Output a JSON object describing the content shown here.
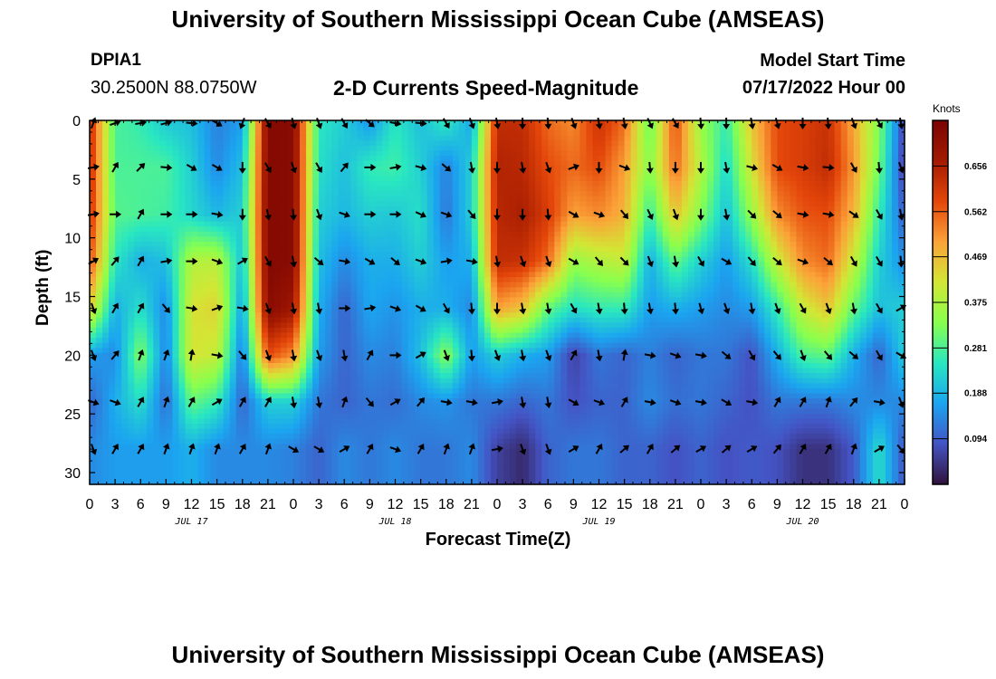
{
  "header": {
    "title": "University of Southern Mississippi Ocean Cube (AMSEAS)",
    "station": "DPIA1",
    "coords": "30.2500N  88.0750W",
    "plot_title": "2-D Currents Speed-Magnitude",
    "model_start_label": "Model Start Time",
    "model_start_value": "07/17/2022 Hour 00"
  },
  "footer": {
    "title": "University of Southern Mississippi Ocean Cube (AMSEAS)"
  },
  "chart_data": {
    "type": "heatmap",
    "title": "2-D Currents Speed-Magnitude",
    "xlabel": "Forecast Time(Z)",
    "ylabel": "Depth (ft)",
    "x_tick_labels": [
      "0",
      "3",
      "6",
      "9",
      "12",
      "15",
      "18",
      "21",
      "0",
      "3",
      "6",
      "9",
      "12",
      "15",
      "18",
      "21",
      "0",
      "3",
      "6",
      "9",
      "12",
      "15",
      "18",
      "21",
      "0",
      "3",
      "6",
      "9",
      "12",
      "15",
      "18",
      "21",
      "0"
    ],
    "date_labels": [
      {
        "label": "JUL 17",
        "hour": 12
      },
      {
        "label": "JUL 18",
        "hour": 36
      },
      {
        "label": "JUL 19",
        "hour": 60
      },
      {
        "label": "JUL 20",
        "hour": 84
      }
    ],
    "xlim_hours": [
      0,
      96
    ],
    "y_ticks": [
      0,
      5,
      10,
      15,
      20,
      25,
      30
    ],
    "ylim_ft": [
      0,
      31
    ],
    "colorbar": {
      "title": "Knots",
      "ticks": [
        0.094,
        0.188,
        0.281,
        0.375,
        0.469,
        0.562,
        0.656
      ],
      "range": [
        0,
        0.75
      ],
      "colors": [
        "#30123b",
        "#4454c4",
        "#1ba4f0",
        "#29e7c1",
        "#88ff4e",
        "#d3e635",
        "#fba238",
        "#e4460a",
        "#a41a01",
        "#7a0403"
      ]
    },
    "depth_levels_ft": [
      0,
      4,
      8,
      12,
      16,
      20,
      24,
      28
    ],
    "column_hours": [
      0,
      3,
      6,
      9,
      12,
      15,
      18,
      21,
      24,
      27,
      30,
      33,
      36,
      39,
      42,
      45,
      48,
      51,
      54,
      57,
      60,
      63,
      66,
      69,
      72,
      75,
      78,
      81,
      84,
      87,
      90,
      93,
      96
    ],
    "speed_knots": [
      [
        0.63,
        0.28,
        0.26,
        0.21,
        0.2,
        0.13,
        0.16,
        0.73,
        0.72,
        0.25,
        0.22,
        0.15,
        0.25,
        0.2,
        0.26,
        0.17,
        0.63,
        0.63,
        0.55,
        0.52,
        0.62,
        0.55,
        0.3,
        0.58,
        0.35,
        0.26,
        0.46,
        0.58,
        0.6,
        0.62,
        0.49,
        0.33,
        0.06
      ],
      [
        0.63,
        0.28,
        0.28,
        0.28,
        0.22,
        0.14,
        0.2,
        0.73,
        0.72,
        0.24,
        0.2,
        0.26,
        0.27,
        0.22,
        0.13,
        0.22,
        0.65,
        0.64,
        0.58,
        0.55,
        0.58,
        0.5,
        0.33,
        0.55,
        0.38,
        0.23,
        0.42,
        0.58,
        0.6,
        0.63,
        0.51,
        0.31,
        0.05
      ],
      [
        0.62,
        0.29,
        0.28,
        0.27,
        0.23,
        0.19,
        0.22,
        0.73,
        0.72,
        0.22,
        0.19,
        0.22,
        0.21,
        0.24,
        0.12,
        0.22,
        0.64,
        0.66,
        0.6,
        0.5,
        0.52,
        0.48,
        0.26,
        0.46,
        0.33,
        0.2,
        0.35,
        0.52,
        0.57,
        0.58,
        0.48,
        0.26,
        0.09
      ],
      [
        0.58,
        0.25,
        0.18,
        0.2,
        0.38,
        0.39,
        0.2,
        0.73,
        0.72,
        0.2,
        0.14,
        0.18,
        0.18,
        0.22,
        0.16,
        0.18,
        0.63,
        0.62,
        0.55,
        0.35,
        0.38,
        0.4,
        0.18,
        0.3,
        0.22,
        0.16,
        0.24,
        0.4,
        0.52,
        0.55,
        0.4,
        0.22,
        0.14
      ],
      [
        0.45,
        0.18,
        0.24,
        0.14,
        0.42,
        0.44,
        0.16,
        0.72,
        0.68,
        0.18,
        0.1,
        0.17,
        0.15,
        0.18,
        0.18,
        0.14,
        0.5,
        0.46,
        0.3,
        0.24,
        0.26,
        0.26,
        0.16,
        0.18,
        0.16,
        0.14,
        0.16,
        0.26,
        0.4,
        0.46,
        0.3,
        0.2,
        0.22
      ],
      [
        0.16,
        0.14,
        0.33,
        0.13,
        0.42,
        0.4,
        0.12,
        0.58,
        0.52,
        0.16,
        0.1,
        0.14,
        0.13,
        0.2,
        0.34,
        0.16,
        0.22,
        0.18,
        0.16,
        0.06,
        0.12,
        0.1,
        0.13,
        0.1,
        0.12,
        0.12,
        0.08,
        0.18,
        0.28,
        0.3,
        0.18,
        0.1,
        0.22
      ],
      [
        0.1,
        0.18,
        0.24,
        0.11,
        0.3,
        0.26,
        0.1,
        0.22,
        0.22,
        0.12,
        0.1,
        0.12,
        0.11,
        0.14,
        0.15,
        0.12,
        0.12,
        0.1,
        0.12,
        0.08,
        0.1,
        0.1,
        0.14,
        0.11,
        0.12,
        0.1,
        0.08,
        0.12,
        0.12,
        0.12,
        0.14,
        0.14,
        0.14
      ],
      [
        0.14,
        0.16,
        0.16,
        0.16,
        0.18,
        0.14,
        0.14,
        0.14,
        0.13,
        0.1,
        0.14,
        0.12,
        0.14,
        0.12,
        0.12,
        0.14,
        0.06,
        0.03,
        0.1,
        0.12,
        0.12,
        0.1,
        0.1,
        0.08,
        0.1,
        0.08,
        0.09,
        0.08,
        0.04,
        0.04,
        0.09,
        0.24,
        0.08
      ]
    ],
    "direction_deg": [
      [
        20,
        70,
        80,
        75,
        95,
        120,
        200,
        150,
        165,
        160,
        150,
        130,
        100,
        95,
        150,
        160,
        170,
        180,
        175,
        160,
        170,
        170,
        155,
        150,
        175,
        180,
        170,
        165,
        180,
        175,
        160,
        150,
        170
      ],
      [
        80,
        30,
        45,
        95,
        120,
        120,
        180,
        150,
        160,
        150,
        40,
        90,
        80,
        105,
        130,
        170,
        180,
        170,
        160,
        70,
        180,
        110,
        175,
        180,
        180,
        170,
        105,
        120,
        100,
        95,
        150,
        175,
        160
      ],
      [
        80,
        90,
        30,
        90,
        90,
        100,
        180,
        170,
        175,
        160,
        110,
        90,
        90,
        115,
        110,
        140,
        180,
        180,
        175,
        120,
        110,
        140,
        155,
        160,
        180,
        170,
        135,
        130,
        100,
        100,
        125,
        150,
        170
      ],
      [
        60,
        40,
        30,
        80,
        90,
        110,
        60,
        150,
        170,
        130,
        100,
        120,
        130,
        110,
        80,
        100,
        170,
        160,
        160,
        120,
        140,
        135,
        160,
        170,
        150,
        120,
        140,
        130,
        110,
        130,
        150,
        150,
        175
      ],
      [
        160,
        30,
        30,
        140,
        100,
        70,
        100,
        160,
        170,
        170,
        90,
        80,
        110,
        120,
        150,
        175,
        180,
        170,
        170,
        150,
        170,
        175,
        170,
        175,
        165,
        160,
        170,
        160,
        150,
        160,
        170,
        150,
        60
      ],
      [
        160,
        40,
        20,
        20,
        10,
        100,
        140,
        160,
        170,
        160,
        170,
        30,
        90,
        60,
        160,
        175,
        160,
        170,
        160,
        30,
        170,
        10,
        100,
        110,
        100,
        130,
        150,
        140,
        160,
        140,
        130,
        150,
        120
      ],
      [
        110,
        110,
        30,
        20,
        30,
        60,
        30,
        30,
        170,
        170,
        20,
        140,
        60,
        40,
        100,
        100,
        80,
        170,
        170,
        120,
        110,
        30,
        100,
        110,
        100,
        120,
        100,
        30,
        30,
        20,
        40,
        100,
        160
      ],
      [
        160,
        30,
        30,
        20,
        20,
        20,
        30,
        20,
        120,
        120,
        60,
        30,
        110,
        30,
        20,
        20,
        80,
        160,
        160,
        60,
        30,
        50,
        30,
        50,
        60,
        50,
        60,
        40,
        30,
        30,
        20,
        60,
        140
      ]
    ]
  }
}
